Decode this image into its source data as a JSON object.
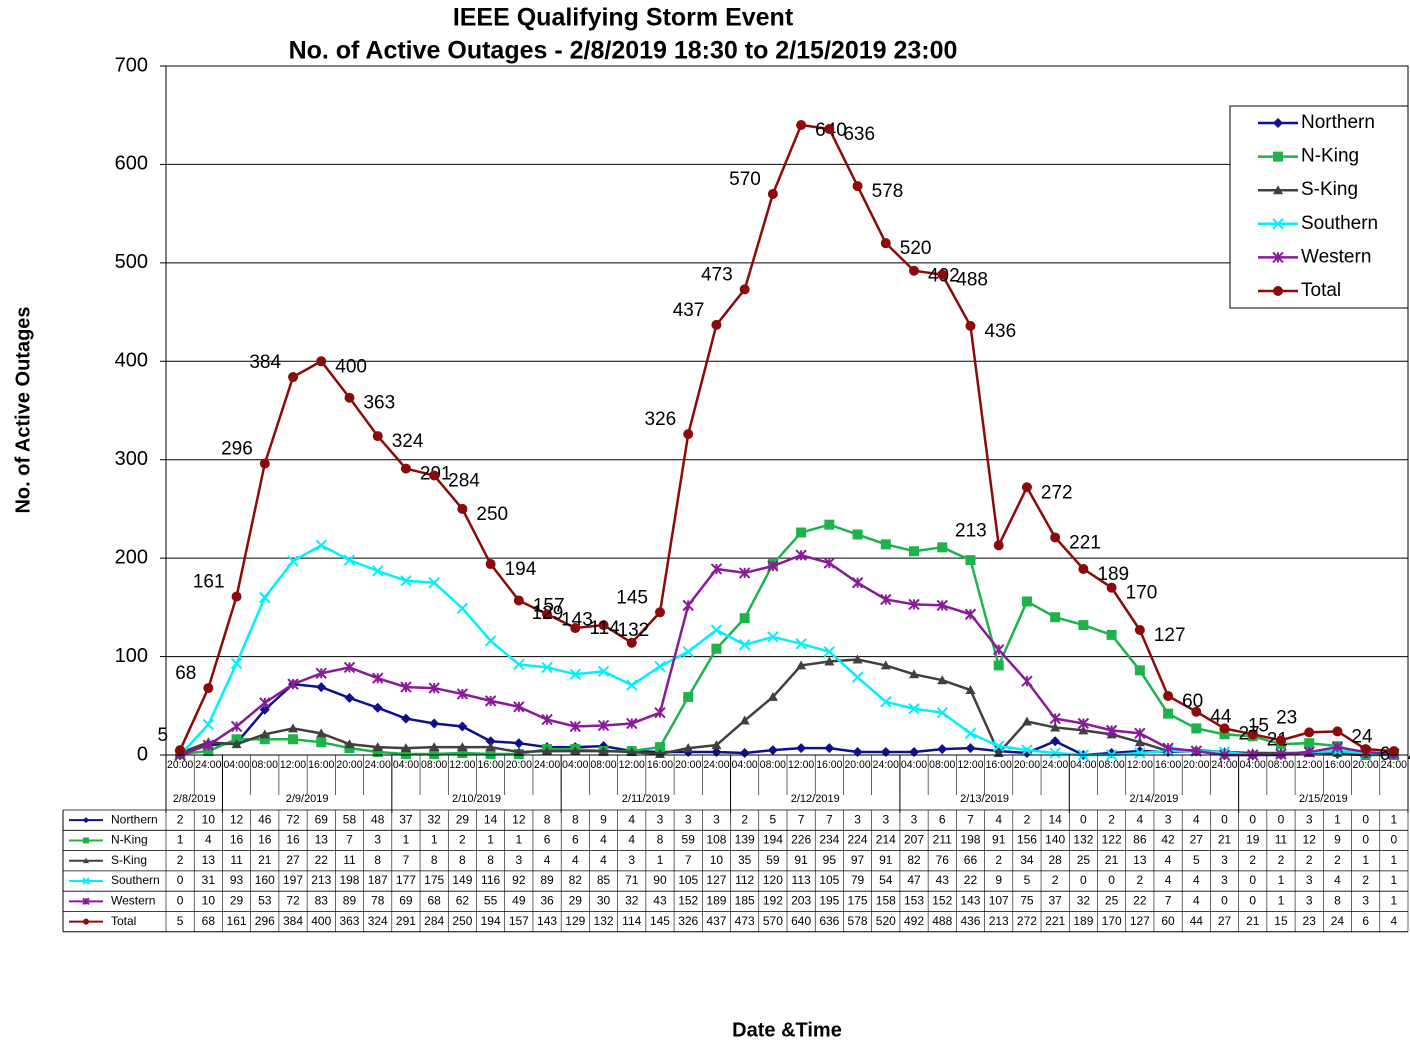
{
  "chart_data": {
    "type": "line",
    "title": "IEEE Qualifying Storm Event",
    "subtitle": "No. of Active Outages -  2/8/2019 18:30 to 2/15/2019 23:00",
    "y_label": "No. of Active Outages",
    "x_label": "Date &Time",
    "categories": [
      "20:00",
      "24:00",
      "04:00",
      "08:00",
      "12:00",
      "16:00",
      "20:00",
      "24:00",
      "04:00",
      "08:00",
      "12:00",
      "16:00",
      "20:00",
      "24:00",
      "04:00",
      "08:00",
      "12:00",
      "16:00",
      "20:00",
      "24:00",
      "04:00",
      "08:00",
      "12:00",
      "16:00",
      "20:00",
      "24:00",
      "04:00",
      "08:00",
      "12:00",
      "16:00",
      "20:00",
      "24:00",
      "04:00",
      "08:00",
      "12:00",
      "16:00",
      "20:00",
      "24:00",
      "04:00",
      "08:00",
      "12:00",
      "16:00",
      "20:00",
      "24:00"
    ],
    "dates": [
      "2/8/2019",
      "2/9/2019",
      "2/10/2019",
      "2/11/2019",
      "2/12/2019",
      "2/13/2019",
      "2/14/2019",
      "2/15/2019"
    ],
    "ylim": [
      0,
      700
    ],
    "yticks": [
      0,
      100,
      200,
      300,
      400,
      500,
      600,
      700
    ],
    "grid": true,
    "legend": "top-right",
    "series": [
      {
        "name": "Northern",
        "color": "#10108a",
        "marker": "diamond",
        "values": [
          2,
          10,
          12,
          46,
          72,
          69,
          58,
          48,
          37,
          32,
          29,
          14,
          12,
          8,
          8,
          9,
          4,
          3,
          3,
          3,
          2,
          5,
          7,
          7,
          3,
          3,
          3,
          6,
          7,
          4,
          2,
          14,
          0,
          2,
          4,
          3,
          4,
          0,
          0,
          0,
          3,
          1,
          0,
          1
        ]
      },
      {
        "name": "N-King",
        "color": "#1db34a",
        "marker": "square",
        "values": [
          1,
          4,
          16,
          16,
          16,
          13,
          7,
          3,
          1,
          1,
          2,
          1,
          1,
          6,
          6,
          4,
          4,
          8,
          59,
          108,
          139,
          194,
          226,
          234,
          224,
          214,
          207,
          211,
          198,
          91,
          156,
          140,
          132,
          122,
          86,
          42,
          27,
          21,
          19,
          11,
          12,
          9,
          0,
          0
        ]
      },
      {
        "name": "S-King",
        "color": "#404040",
        "marker": "triangle",
        "values": [
          2,
          13,
          11,
          21,
          27,
          22,
          11,
          8,
          7,
          8,
          8,
          8,
          3,
          4,
          4,
          4,
          3,
          1,
          7,
          10,
          35,
          59,
          91,
          95,
          97,
          91,
          82,
          76,
          66,
          2,
          34,
          28,
          25,
          21,
          13,
          4,
          5,
          3,
          2,
          2,
          2,
          2,
          1,
          1
        ]
      },
      {
        "name": "Southern",
        "color": "#00f0ff",
        "marker": "x",
        "values": [
          0,
          31,
          93,
          160,
          197,
          213,
          198,
          187,
          177,
          175,
          149,
          116,
          92,
          89,
          82,
          85,
          71,
          90,
          105,
          127,
          112,
          120,
          113,
          105,
          79,
          54,
          47,
          43,
          22,
          9,
          5,
          2,
          0,
          0,
          2,
          4,
          4,
          3,
          0,
          1,
          3,
          4,
          2,
          1
        ]
      },
      {
        "name": "Western",
        "color": "#8a1a9a",
        "marker": "star",
        "values": [
          0,
          10,
          29,
          53,
          72,
          83,
          89,
          78,
          69,
          68,
          62,
          55,
          49,
          36,
          29,
          30,
          32,
          43,
          152,
          189,
          185,
          192,
          203,
          195,
          175,
          158,
          153,
          152,
          143,
          107,
          75,
          37,
          32,
          25,
          22,
          7,
          4,
          0,
          0,
          1,
          3,
          8,
          3,
          1
        ]
      },
      {
        "name": "Total",
        "color": "#8b0a0a",
        "marker": "circle",
        "data_labels": true,
        "values": [
          5,
          68,
          161,
          296,
          384,
          400,
          363,
          324,
          291,
          284,
          250,
          194,
          157,
          143,
          129,
          132,
          114,
          145,
          326,
          437,
          473,
          570,
          640,
          636,
          578,
          520,
          492,
          488,
          436,
          213,
          272,
          221,
          189,
          170,
          127,
          60,
          44,
          27,
          21,
          15,
          23,
          24,
          6,
          4
        ]
      }
    ]
  }
}
